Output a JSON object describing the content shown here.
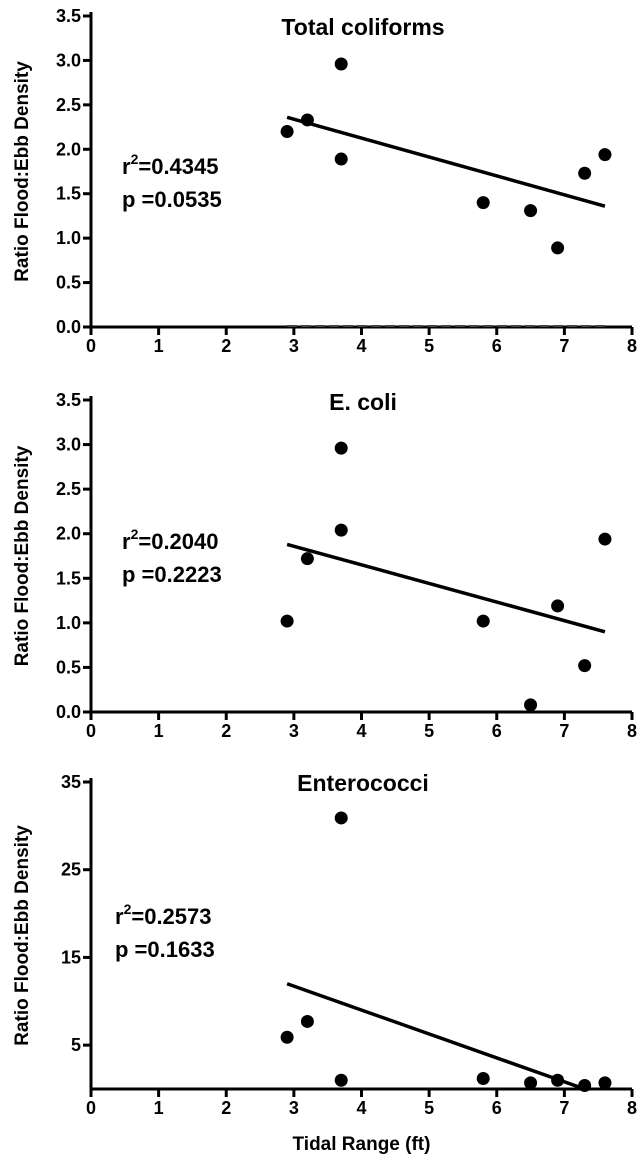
{
  "chart_data": [
    {
      "type": "scatter",
      "title": "Total coliforms",
      "xlabel": "",
      "ylabel": "Ratio Flood:Ebb Density",
      "xlim": [
        0,
        8
      ],
      "ylim": [
        0,
        3.5
      ],
      "xticks": [
        "0",
        "1",
        "2",
        "3",
        "4",
        "5",
        "6",
        "7",
        "8"
      ],
      "yticks": [
        "0.0",
        "0.5",
        "1.0",
        "1.5",
        "2.0",
        "2.5",
        "3.0",
        "3.5"
      ],
      "points": [
        {
          "x": 2.9,
          "y": 2.2
        },
        {
          "x": 3.2,
          "y": 2.33
        },
        {
          "x": 3.7,
          "y": 2.96
        },
        {
          "x": 3.7,
          "y": 1.89
        },
        {
          "x": 5.8,
          "y": 1.4
        },
        {
          "x": 6.5,
          "y": 1.31
        },
        {
          "x": 6.9,
          "y": 0.89
        },
        {
          "x": 7.3,
          "y": 1.73
        },
        {
          "x": 7.6,
          "y": 1.94
        }
      ],
      "regression": {
        "x1": 2.9,
        "y1": 2.36,
        "x2": 7.6,
        "y2": 1.36
      },
      "baseline": {
        "y": 0,
        "x1": 2.9,
        "x2": 7.6,
        "style": "dashed"
      },
      "stats": {
        "r2_prefix": "r",
        "r2_sup": "2",
        "r2_value": "=0.4345",
        "p_text": "p =0.0535"
      }
    },
    {
      "type": "scatter",
      "title": "E. coli",
      "xlabel": "",
      "ylabel": "Ratio Flood:Ebb Density",
      "xlim": [
        0,
        8
      ],
      "ylim": [
        0,
        3.5
      ],
      "xticks": [
        "0",
        "1",
        "2",
        "3",
        "4",
        "5",
        "6",
        "7",
        "8"
      ],
      "yticks": [
        "0.0",
        "0.5",
        "1.0",
        "1.5",
        "2.0",
        "2.5",
        "3.0",
        "3.5"
      ],
      "points": [
        {
          "x": 2.9,
          "y": 1.02
        },
        {
          "x": 3.2,
          "y": 1.72
        },
        {
          "x": 3.7,
          "y": 2.96
        },
        {
          "x": 3.7,
          "y": 2.04
        },
        {
          "x": 5.8,
          "y": 1.02
        },
        {
          "x": 6.5,
          "y": 0.08
        },
        {
          "x": 6.9,
          "y": 1.19
        },
        {
          "x": 7.3,
          "y": 0.52
        },
        {
          "x": 7.6,
          "y": 1.94
        }
      ],
      "regression": {
        "x1": 2.9,
        "y1": 1.88,
        "x2": 7.6,
        "y2": 0.9
      },
      "stats": {
        "r2_prefix": "r",
        "r2_sup": "2",
        "r2_value": "=0.2040",
        "p_text": "p =0.2223"
      }
    },
    {
      "type": "scatter",
      "title": "Enterococci",
      "xlabel": "Tidal Range (ft)",
      "ylabel": "Ratio Flood:Ebb Density",
      "xlim": [
        0,
        8
      ],
      "ylim": [
        0,
        35
      ],
      "xticks": [
        "0",
        "1",
        "2",
        "3",
        "4",
        "5",
        "6",
        "7",
        "8"
      ],
      "yticks": [
        "5",
        "15",
        "25",
        "35"
      ],
      "yticks_values": [
        5,
        15,
        25,
        35
      ],
      "points": [
        {
          "x": 2.9,
          "y": 5.9
        },
        {
          "x": 3.2,
          "y": 7.7
        },
        {
          "x": 3.7,
          "y": 30.9
        },
        {
          "x": 3.7,
          "y": 1.0
        },
        {
          "x": 5.8,
          "y": 1.2
        },
        {
          "x": 6.5,
          "y": 0.7
        },
        {
          "x": 6.9,
          "y": 1.0
        },
        {
          "x": 7.3,
          "y": 0.4
        },
        {
          "x": 7.6,
          "y": 0.7
        }
      ],
      "regression": {
        "x1": 2.9,
        "y1": 12.0,
        "x2": 7.3,
        "y2": 0.0
      },
      "stats": {
        "r2_prefix": "r",
        "r2_sup": "2",
        "r2_value": "=0.2573",
        "p_text": "p =0.1633"
      }
    }
  ]
}
